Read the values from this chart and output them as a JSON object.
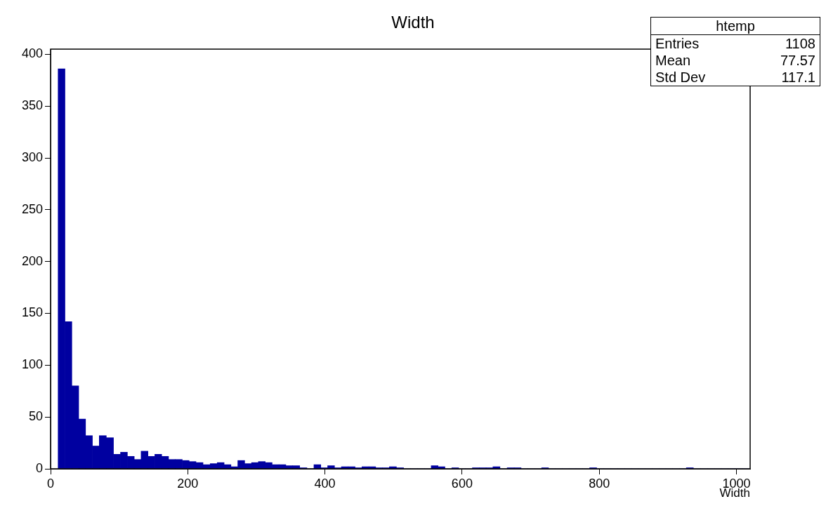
{
  "chart_data": {
    "type": "histogram",
    "title": "Width",
    "xlabel": "Width",
    "bins": [
      11,
      21,
      31,
      41,
      51,
      61,
      71,
      81,
      92,
      102,
      112,
      122,
      132,
      142,
      152,
      162,
      172,
      182,
      192,
      202,
      212,
      222,
      233,
      243,
      253,
      263,
      273,
      283,
      293,
      303,
      313,
      323,
      333,
      343,
      353,
      363,
      374,
      384,
      394,
      404,
      414,
      424,
      434,
      444,
      454,
      464,
      474,
      484,
      494,
      504,
      515,
      525,
      535,
      545,
      555,
      565,
      575,
      585,
      595,
      605,
      615,
      625,
      635,
      645,
      655,
      666,
      676,
      686,
      696,
      706,
      716,
      726,
      736,
      746,
      756,
      766,
      776,
      786,
      796,
      807,
      817,
      827,
      837,
      847,
      857,
      867,
      877,
      887,
      897,
      907,
      917,
      927,
      937,
      948,
      958,
      968,
      978,
      988,
      998,
      1008,
      1018
    ],
    "values": [
      386,
      142,
      80,
      48,
      32,
      22,
      32,
      30,
      14,
      16,
      12,
      9,
      17,
      12,
      14,
      12,
      9,
      9,
      8,
      7,
      6,
      4,
      5,
      6,
      4,
      2,
      8,
      5,
      6,
      7,
      6,
      4,
      4,
      3,
      3,
      1,
      0,
      4,
      1,
      3,
      1,
      2,
      2,
      1,
      2,
      2,
      1,
      1,
      2,
      1,
      0,
      0,
      0,
      0,
      3,
      2,
      0,
      1,
      0,
      0,
      1,
      1,
      1,
      2,
      0,
      1,
      1,
      0,
      0,
      0,
      1,
      0,
      0,
      0,
      0,
      0,
      0,
      1,
      0,
      0,
      0,
      0,
      0,
      0,
      0,
      0,
      0,
      0,
      0,
      0,
      0,
      1,
      0,
      0,
      0,
      0,
      0,
      0,
      0,
      0
    ],
    "color": "#0000a0",
    "xlim": [
      0,
      1020
    ],
    "xticks": [
      0,
      200,
      400,
      600,
      800,
      1000
    ],
    "ylim": [
      0,
      405
    ],
    "yticks": [
      0,
      50,
      100,
      150,
      200,
      250,
      300,
      350,
      400
    ],
    "grid": false,
    "legend": false,
    "annotations": [
      "htemp",
      "Entries 1108",
      "Mean 77.57",
      "Std Dev 117.1"
    ]
  }
}
